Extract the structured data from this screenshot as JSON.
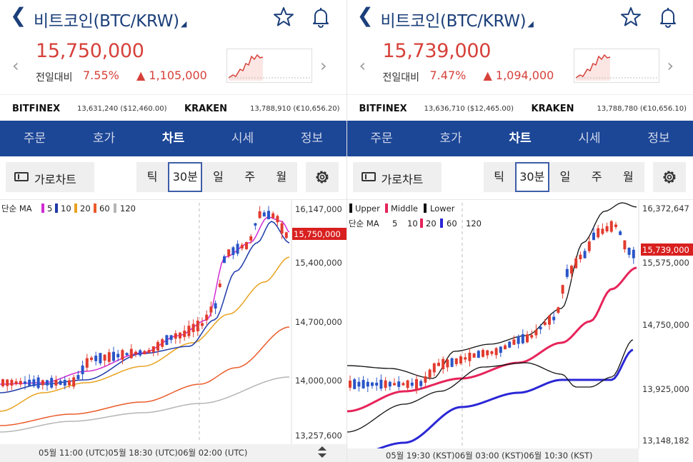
{
  "panels": [
    {
      "title": "비트코인(BTC/KRW)",
      "price": "15,750,000",
      "change_label": "전일대비",
      "change_pct": "7.55%",
      "change_amt": "▲ 1,105,000",
      "exchanges": [
        {
          "name": "BITFINEX",
          "value": "13,631,240 ($12,460.00)"
        },
        {
          "name": "KRAKEN",
          "value": "13,788,910 (€10,656.20)"
        }
      ],
      "tabs": [
        "주문",
        "호가",
        "차트",
        "시세",
        "정보"
      ],
      "active_tab": "차트",
      "horizontal_chart": "가로차트",
      "periods": [
        "틱",
        "30분",
        "일",
        "주",
        "월"
      ],
      "selected_period": "30분",
      "legend": {
        "ma_label": "단순 MA",
        "ma_values": [
          "5",
          "10",
          "20",
          "60",
          "120"
        ]
      },
      "y_ticks": [
        "16,147,000",
        "15,400,000",
        "14,700,000",
        "14,000,000",
        "13,257,600"
      ],
      "current_price_tag": "15,750,000",
      "x_label": "05월 11:00 (UTC)05월 18:30 (UTC)06월 02:00 (UTC)"
    },
    {
      "title": "비트코인(BTC/KRW)",
      "price": "15,739,000",
      "change_label": "전일대비",
      "change_pct": "7.47%",
      "change_amt": "▲ 1,094,000",
      "exchanges": [
        {
          "name": "BITFINEX",
          "value": "13,636,710 ($12,465.00)"
        },
        {
          "name": "KRAKEN",
          "value": "13,788,780 (€10,656.10)"
        }
      ],
      "tabs": [
        "주문",
        "호가",
        "차트",
        "시세",
        "정보"
      ],
      "active_tab": "차트",
      "horizontal_chart": "가로차트",
      "periods": [
        "틱",
        "30분",
        "일",
        "주",
        "월"
      ],
      "selected_period": "30분",
      "legend": {
        "bb": [
          "Upper",
          "Middle",
          "Lower"
        ],
        "ma_label": "단순 MA",
        "ma_values": [
          "5",
          "10",
          "20",
          "60",
          "120"
        ]
      },
      "y_ticks": [
        "16,372,647",
        "15,575,000",
        "14,750,000",
        "13,925,000",
        "13,148,182"
      ],
      "current_price_tag": "15,739,000",
      "x_label": "05월 19:30 (KST)06월 03:00 (KST)06월 10:30 (KST)"
    }
  ],
  "colors": {
    "navy": "#1c4696",
    "price_red": "#d6413a",
    "candle_up": "#e23b2e",
    "candle_down": "#2a55c8",
    "ma5": "#d12bd1",
    "ma10": "#1f3aa8",
    "ma20": "#e9a21f",
    "ma60": "#ea5b2a",
    "ma120": "#b5b5b5",
    "bb_middle": "#e6245a",
    "ma60_blue": "#2b27d6"
  },
  "icons": [
    "back-chevron-icon",
    "dropdown-caret-icon",
    "star-icon",
    "bell-icon",
    "chevron-left-icon",
    "chevron-right-icon",
    "horizontal-chart-icon",
    "gear-icon",
    "scroll-handle-icon"
  ]
}
